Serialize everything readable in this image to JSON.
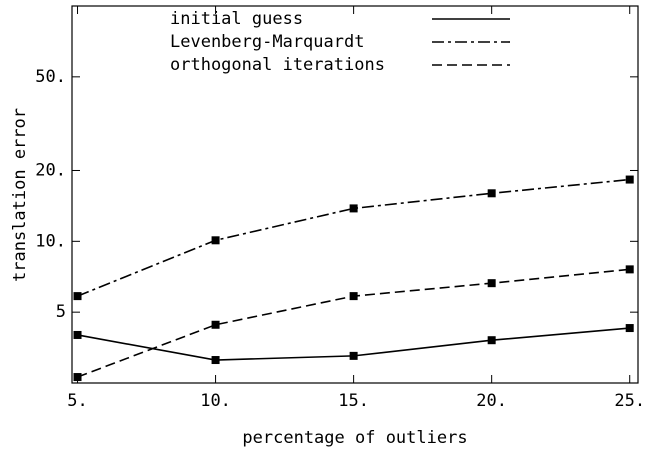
{
  "chart_data": {
    "type": "line",
    "x_label": "percentage of outliers",
    "y_label": "translation error",
    "x": [
      5,
      10,
      15,
      20,
      25
    ],
    "xlim": [
      4.8,
      25.3
    ],
    "xticks": [
      {
        "value": 5,
        "label": "5."
      },
      {
        "value": 10,
        "label": "10."
      },
      {
        "value": 15,
        "label": "15."
      },
      {
        "value": 20,
        "label": "20."
      },
      {
        "value": 25,
        "label": "25."
      }
    ],
    "ylim": [
      2.5,
      100
    ],
    "y_scale": "log",
    "yticks": [
      {
        "value": 5,
        "label": "5"
      },
      {
        "value": 10,
        "label": "10."
      },
      {
        "value": 20,
        "label": "20."
      },
      {
        "value": 50,
        "label": "50."
      }
    ],
    "series": [
      {
        "name": "initial guess",
        "color": "#000000",
        "dash": "solid",
        "values": [
          4.0,
          3.13,
          3.26,
          3.8,
          4.28
        ]
      },
      {
        "name": "Levenberg-Marquardt",
        "color": "#000000",
        "dash": "dashdot",
        "values": [
          5.85,
          10.1,
          13.8,
          16.0,
          18.3
        ]
      },
      {
        "name": "orthogonal iterations",
        "color": "#000000",
        "dash": "dashed",
        "values": [
          2.65,
          4.42,
          5.85,
          6.64,
          7.6
        ]
      }
    ]
  }
}
